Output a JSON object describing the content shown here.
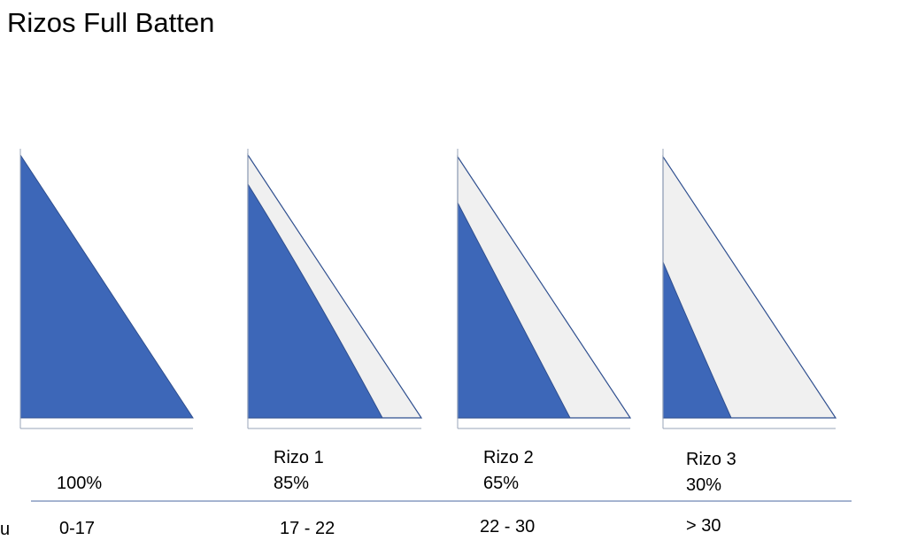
{
  "title": "Rizos Full Batten",
  "row_label": "u",
  "sails": [
    {
      "percent": "100%",
      "wind": "0-17"
    },
    {
      "label": "Rizo 1",
      "percent": "85%",
      "wind": "17 - 22"
    },
    {
      "label": "Rizo 2",
      "percent": "65%",
      "wind": "22 - 30"
    },
    {
      "label": "Rizo 3",
      "percent": "30%",
      "wind": "> 30"
    }
  ]
}
